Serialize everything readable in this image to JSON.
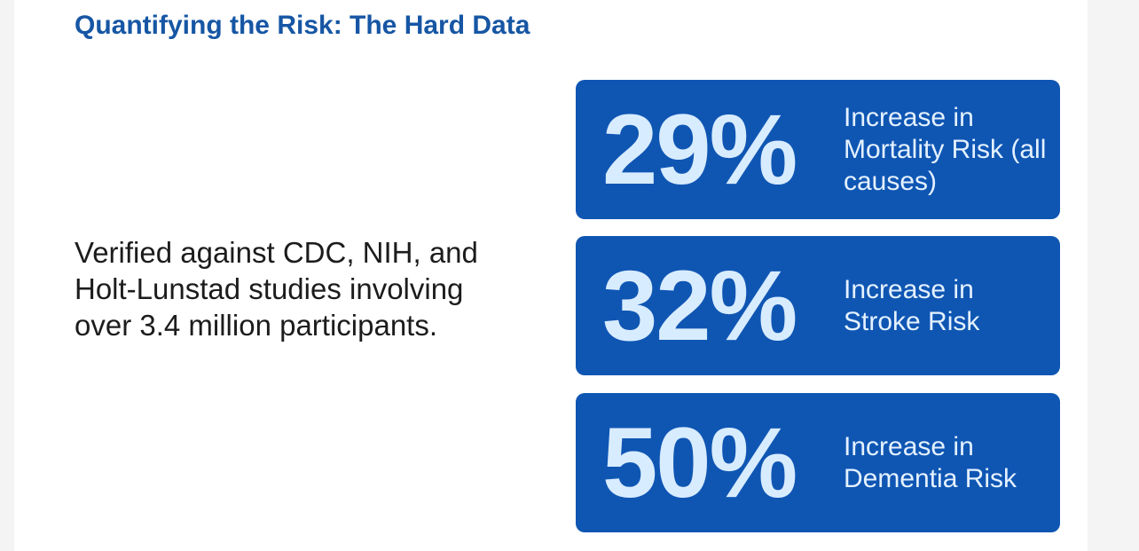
{
  "slide": {
    "title": "Quantifying the Risk: The Hard Data",
    "body": "Verified against CDC, NIH, and Holt-Lunstad studies involving over 3.4 million participants."
  },
  "stats": [
    {
      "value": "29%",
      "label": "Increase in Mortality Risk (all causes)"
    },
    {
      "value": "32%",
      "label": "Increase in Stroke Risk"
    },
    {
      "value": "50%",
      "label": "Increase in Dementia Risk"
    }
  ],
  "colors": {
    "title": "#1656a4",
    "card_background": "#0f56b3",
    "card_value": "#d8ecff",
    "card_label": "#e4f1ff",
    "body_text": "#1c1c1c"
  }
}
